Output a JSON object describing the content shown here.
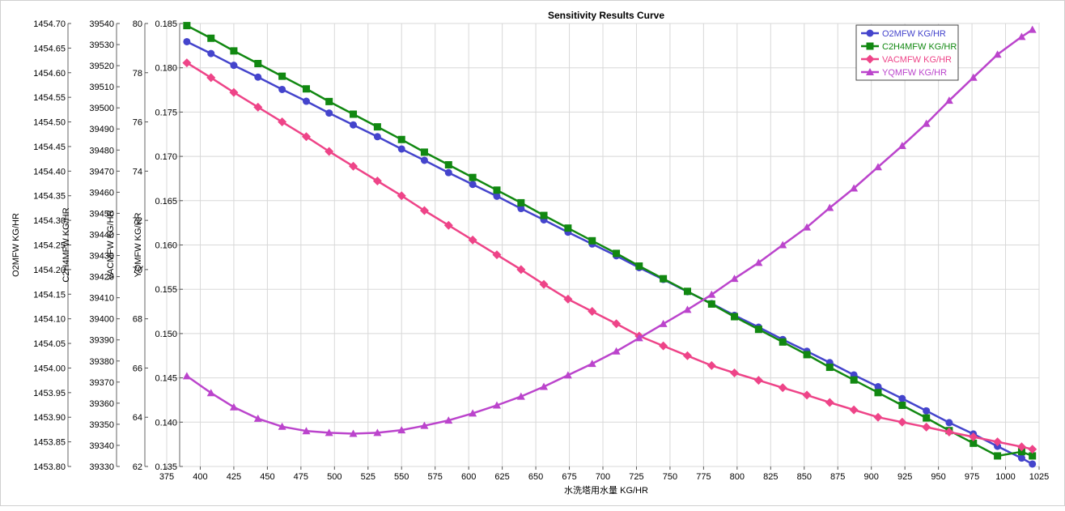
{
  "chart_data": {
    "type": "line",
    "title": "Sensitivity Results Curve",
    "xlabel": "水洗塔用水量 KG/HR",
    "xlim": [
      375,
      1025
    ],
    "x_ticks": [
      375,
      400,
      425,
      450,
      475,
      500,
      525,
      550,
      575,
      600,
      625,
      650,
      675,
      700,
      725,
      750,
      775,
      800,
      825,
      850,
      875,
      900,
      925,
      950,
      975,
      1000,
      1025
    ],
    "grid": true,
    "legend_position": "top-right",
    "axes": [
      {
        "key": "o2",
        "label": "O2MFW KG/HR",
        "ylim": [
          1453.8,
          1454.7
        ],
        "ticks": [
          "1453.80",
          "1453.85",
          "1453.90",
          "1453.95",
          "1454.00",
          "1454.05",
          "1454.10",
          "1454.15",
          "1454.20",
          "1454.25",
          "1454.30",
          "1454.35",
          "1454.40",
          "1454.45",
          "1454.50",
          "1454.55",
          "1454.60",
          "1454.65",
          "1454.70"
        ]
      },
      {
        "key": "c2h4",
        "label": "C2H4MFW KG/HR",
        "ylim": [
          39330,
          39540
        ],
        "ticks": [
          "39330",
          "39340",
          "39350",
          "39360",
          "39370",
          "39380",
          "39390",
          "39400",
          "39410",
          "39420",
          "39430",
          "39440",
          "39450",
          "39460",
          "39470",
          "39480",
          "39490",
          "39500",
          "39510",
          "39520",
          "39530",
          "39540"
        ]
      },
      {
        "key": "vac",
        "label": "VACMFW KG/HR",
        "ylim": [
          62,
          80
        ],
        "ticks": [
          "62",
          "64",
          "66",
          "68",
          "70",
          "72",
          "74",
          "76",
          "78",
          "80"
        ]
      },
      {
        "key": "yq",
        "label": "YQMFW KG/HR",
        "ylim": [
          0.135,
          0.185
        ],
        "ticks": [
          "0.135",
          "0.140",
          "0.145",
          "0.150",
          "0.155",
          "0.160",
          "0.165",
          "0.170",
          "0.175",
          "0.180",
          "0.185"
        ]
      }
    ],
    "x": [
      390,
      408,
      425,
      443,
      461,
      479,
      496,
      514,
      532,
      550,
      567,
      585,
      603,
      621,
      639,
      656,
      674,
      692,
      710,
      727,
      745,
      763,
      781,
      798,
      816,
      834,
      852,
      869,
      887,
      905,
      923,
      941,
      958,
      976,
      994,
      1012,
      1020
    ],
    "series": [
      {
        "name": "O2MFW KG/HR",
        "axis": "o2",
        "color": "#4444cc",
        "marker": "circle",
        "values": [
          1454.663,
          1454.639,
          1454.615,
          1454.591,
          1454.566,
          1454.542,
          1454.518,
          1454.494,
          1454.47,
          1454.445,
          1454.422,
          1454.397,
          1454.373,
          1454.349,
          1454.324,
          1454.301,
          1454.276,
          1454.252,
          1454.228,
          1454.204,
          1454.18,
          1454.155,
          1454.131,
          1454.107,
          1454.083,
          1454.058,
          1454.034,
          1454.011,
          1453.986,
          1453.962,
          1453.938,
          1453.913,
          1453.889,
          1453.866,
          1453.841,
          1453.817,
          1453.805
        ]
      },
      {
        "name": "C2H4MFW KG/HR",
        "axis": "c2h4",
        "color": "#118811",
        "marker": "square",
        "values": [
          39539,
          39533,
          39527,
          39521,
          39515,
          39509,
          39503,
          39497,
          39491,
          39485,
          39479,
          39473,
          39467,
          39461,
          39455,
          39449,
          39443,
          39437,
          39431,
          39425,
          39419,
          39413,
          39407,
          39401,
          39395,
          39389,
          39383,
          39377,
          39371,
          39365,
          39359,
          39353,
          39347,
          39341,
          39335,
          39337,
          39335
        ]
      },
      {
        "name": "VACMFW KG/HR",
        "axis": "vac",
        "color": "#ee4488",
        "marker": "diamond",
        "values": [
          78.4,
          77.8,
          77.2,
          76.6,
          76.0,
          75.4,
          74.8,
          74.2,
          73.6,
          73.0,
          72.4,
          71.8,
          71.2,
          70.6,
          70.0,
          69.4,
          68.8,
          68.3,
          67.8,
          67.3,
          66.9,
          66.5,
          66.1,
          65.8,
          65.5,
          65.2,
          64.9,
          64.6,
          64.3,
          64.0,
          63.8,
          63.6,
          63.4,
          63.2,
          63.0,
          62.8,
          62.7
        ]
      },
      {
        "name": "YQMFW KG/HR",
        "axis": "yq",
        "color": "#bb44cc",
        "marker": "triangle",
        "values": [
          0.1452,
          0.1433,
          0.1417,
          0.1404,
          0.1395,
          0.139,
          0.1388,
          0.1387,
          0.1388,
          0.1391,
          0.1396,
          0.1402,
          0.141,
          0.1419,
          0.1429,
          0.144,
          0.1453,
          0.1466,
          0.148,
          0.1495,
          0.1511,
          0.1527,
          0.1544,
          0.1562,
          0.158,
          0.16,
          0.162,
          0.1642,
          0.1664,
          0.1688,
          0.1712,
          0.1737,
          0.1763,
          0.1789,
          0.1815,
          0.1835,
          0.1843
        ]
      }
    ]
  }
}
